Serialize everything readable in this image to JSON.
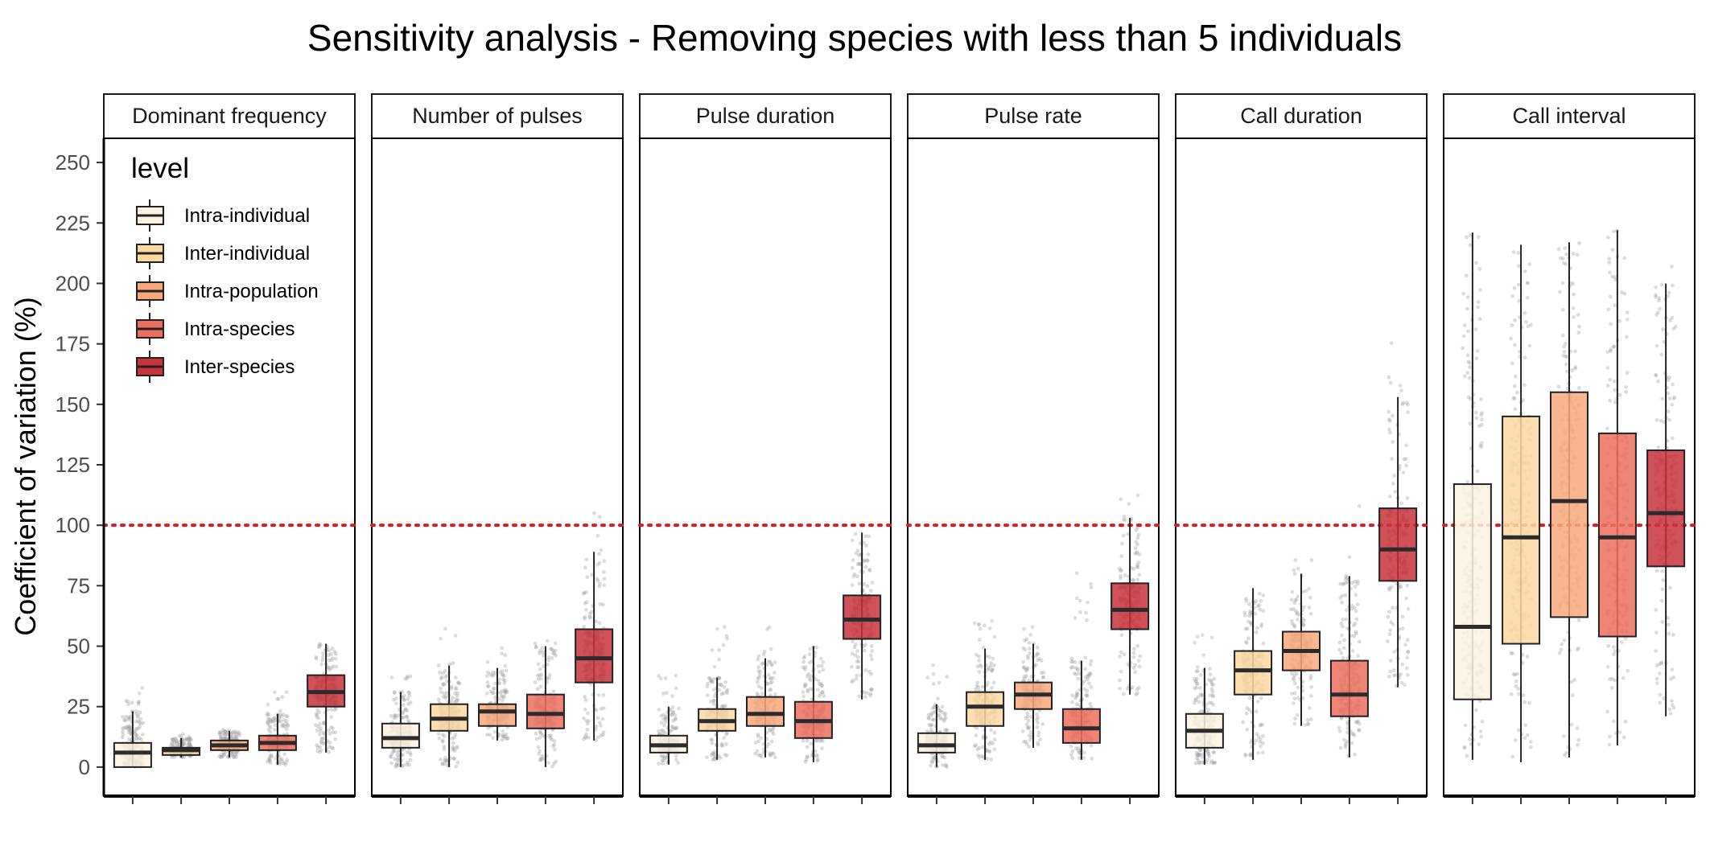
{
  "chart_data": {
    "type": "box",
    "title": "Sensitivity analysis - Removing species with less than 5 individuals",
    "xlabel": "",
    "ylabel": "Coefficient of variation (%)",
    "ylim": [
      -12,
      260
    ],
    "yticks": [
      0,
      25,
      50,
      75,
      100,
      125,
      150,
      175,
      200,
      225,
      250
    ],
    "reference_line": {
      "y": 100,
      "color": "#e8141c",
      "style": "dotted"
    },
    "legend": {
      "title": "level",
      "placement": "top-left",
      "entries": [
        "Intra-individual",
        "Inter-individual",
        "Intra-population",
        "Intra-species",
        "Inter-species"
      ]
    },
    "colors": [
      "#fcf2e0",
      "#fdd8a2",
      "#f9a87e",
      "#ec6e5f",
      "#c8333b"
    ],
    "grid": false,
    "facets": [
      {
        "name": "Dominant frequency",
        "boxes": [
          {
            "level": "Intra-individual",
            "q1": 0,
            "median": 6,
            "q3": 10,
            "whisker_low": 0,
            "whisker_high": 23,
            "jitter_max": 34
          },
          {
            "level": "Inter-individual",
            "q1": 5,
            "median": 7,
            "q3": 8,
            "whisker_low": 4,
            "whisker_high": 12,
            "jitter_max": 14
          },
          {
            "level": "Intra-population",
            "q1": 7,
            "median": 9,
            "q3": 11,
            "whisker_low": 4,
            "whisker_high": 15,
            "jitter_max": 16
          },
          {
            "level": "Intra-species",
            "q1": 7,
            "median": 10,
            "q3": 13,
            "whisker_low": 1,
            "whisker_high": 22,
            "jitter_max": 34
          },
          {
            "level": "Inter-species",
            "q1": 25,
            "median": 31,
            "q3": 38,
            "whisker_low": 6,
            "whisker_high": 51,
            "jitter_max": 51
          }
        ]
      },
      {
        "name": "Number of pulses",
        "boxes": [
          {
            "level": "Intra-individual",
            "q1": 8,
            "median": 12,
            "q3": 18,
            "whisker_low": 0,
            "whisker_high": 31,
            "jitter_max": 45
          },
          {
            "level": "Inter-individual",
            "q1": 15,
            "median": 20,
            "q3": 26,
            "whisker_low": 0,
            "whisker_high": 42,
            "jitter_max": 58
          },
          {
            "level": "Intra-population",
            "q1": 17,
            "median": 23,
            "q3": 26,
            "whisker_low": 11,
            "whisker_high": 41,
            "jitter_max": 51
          },
          {
            "level": "Intra-species",
            "q1": 16,
            "median": 22,
            "q3": 30,
            "whisker_low": 0,
            "whisker_high": 50,
            "jitter_max": 63
          },
          {
            "level": "Inter-species",
            "q1": 35,
            "median": 45,
            "q3": 57,
            "whisker_low": 11,
            "whisker_high": 89,
            "jitter_max": 108
          }
        ]
      },
      {
        "name": "Pulse duration",
        "boxes": [
          {
            "level": "Intra-individual",
            "q1": 6,
            "median": 9,
            "q3": 13,
            "whisker_low": 1,
            "whisker_high": 25,
            "jitter_max": 39
          },
          {
            "level": "Inter-individual",
            "q1": 15,
            "median": 19,
            "q3": 24,
            "whisker_low": 3,
            "whisker_high": 37,
            "jitter_max": 61
          },
          {
            "level": "Intra-population",
            "q1": 17,
            "median": 22,
            "q3": 29,
            "whisker_low": 4,
            "whisker_high": 45,
            "jitter_max": 58
          },
          {
            "level": "Intra-species",
            "q1": 12,
            "median": 19,
            "q3": 27,
            "whisker_low": 2,
            "whisker_high": 50,
            "jitter_max": 50
          },
          {
            "level": "Inter-species",
            "q1": 53,
            "median": 61,
            "q3": 71,
            "whisker_low": 28,
            "whisker_high": 97,
            "jitter_max": 98
          }
        ]
      },
      {
        "name": "Pulse rate",
        "boxes": [
          {
            "level": "Intra-individual",
            "q1": 6,
            "median": 9,
            "q3": 14,
            "whisker_low": 0,
            "whisker_high": 26,
            "jitter_max": 45
          },
          {
            "level": "Inter-individual",
            "q1": 17,
            "median": 25,
            "q3": 31,
            "whisker_low": 3,
            "whisker_high": 49,
            "jitter_max": 61
          },
          {
            "level": "Intra-population",
            "q1": 24,
            "median": 30,
            "q3": 35,
            "whisker_low": 8,
            "whisker_high": 51,
            "jitter_max": 59
          },
          {
            "level": "Intra-species",
            "q1": 10,
            "median": 16,
            "q3": 24,
            "whisker_low": 3,
            "whisker_high": 44,
            "jitter_max": 84
          },
          {
            "level": "Inter-species",
            "q1": 57,
            "median": 65,
            "q3": 76,
            "whisker_low": 30,
            "whisker_high": 103,
            "jitter_max": 130
          }
        ]
      },
      {
        "name": "Call duration",
        "boxes": [
          {
            "level": "Intra-individual",
            "q1": 8,
            "median": 15,
            "q3": 22,
            "whisker_low": 1,
            "whisker_high": 41,
            "jitter_max": 57
          },
          {
            "level": "Inter-individual",
            "q1": 30,
            "median": 40,
            "q3": 48,
            "whisker_low": 3,
            "whisker_high": 74,
            "jitter_max": 80
          },
          {
            "level": "Intra-population",
            "q1": 40,
            "median": 48,
            "q3": 56,
            "whisker_low": 17,
            "whisker_high": 80,
            "jitter_max": 86
          },
          {
            "level": "Intra-species",
            "q1": 21,
            "median": 30,
            "q3": 44,
            "whisker_low": 4,
            "whisker_high": 79,
            "jitter_max": 108
          },
          {
            "level": "Inter-species",
            "q1": 77,
            "median": 90,
            "q3": 107,
            "whisker_low": 33,
            "whisker_high": 153,
            "jitter_max": 184
          }
        ]
      },
      {
        "name": "Call interval",
        "boxes": [
          {
            "level": "Intra-individual",
            "q1": 28,
            "median": 58,
            "q3": 117,
            "whisker_low": 3,
            "whisker_high": 221,
            "jitter_max": 222
          },
          {
            "level": "Inter-individual",
            "q1": 51,
            "median": 95,
            "q3": 145,
            "whisker_low": 2,
            "whisker_high": 216,
            "jitter_max": 216
          },
          {
            "level": "Intra-population",
            "q1": 62,
            "median": 110,
            "q3": 155,
            "whisker_low": 4,
            "whisker_high": 217,
            "jitter_max": 217
          },
          {
            "level": "Intra-species",
            "q1": 54,
            "median": 95,
            "q3": 138,
            "whisker_low": 9,
            "whisker_high": 222,
            "jitter_max": 222
          },
          {
            "level": "Inter-species",
            "q1": 83,
            "median": 105,
            "q3": 131,
            "whisker_low": 21,
            "whisker_high": 200,
            "jitter_max": 213
          }
        ]
      }
    ]
  }
}
